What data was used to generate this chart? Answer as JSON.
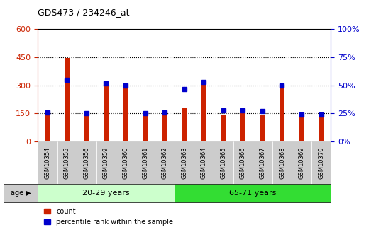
{
  "title": "GDS473 / 234246_at",
  "samples": [
    "GSM10354",
    "GSM10355",
    "GSM10356",
    "GSM10359",
    "GSM10360",
    "GSM10361",
    "GSM10362",
    "GSM10363",
    "GSM10364",
    "GSM10365",
    "GSM10366",
    "GSM10367",
    "GSM10368",
    "GSM10369",
    "GSM10370"
  ],
  "counts": [
    145,
    445,
    143,
    300,
    300,
    135,
    155,
    178,
    325,
    145,
    152,
    145,
    305,
    135,
    130
  ],
  "percentiles": [
    26,
    55,
    25,
    52,
    50,
    25,
    26,
    47,
    53,
    28,
    28,
    27,
    50,
    24,
    24
  ],
  "group1_label": "20-29 years",
  "group2_label": "65-71 years",
  "group1_count": 7,
  "group2_count": 8,
  "ylim_left": [
    0,
    600
  ],
  "ylim_right": [
    0,
    100
  ],
  "yticks_left": [
    0,
    150,
    300,
    450,
    600
  ],
  "yticks_right": [
    0,
    25,
    50,
    75,
    100
  ],
  "bar_color": "#cc2200",
  "dot_color": "#0000cc",
  "group1_bg": "#ccffcc",
  "group2_bg": "#33dd33",
  "tickbox_bg": "#cccccc",
  "age_label_bg": "#cccccc",
  "grid_color": "#000000",
  "plot_bg": "#ffffff",
  "legend_count_label": "count",
  "legend_pct_label": "percentile rank within the sample"
}
